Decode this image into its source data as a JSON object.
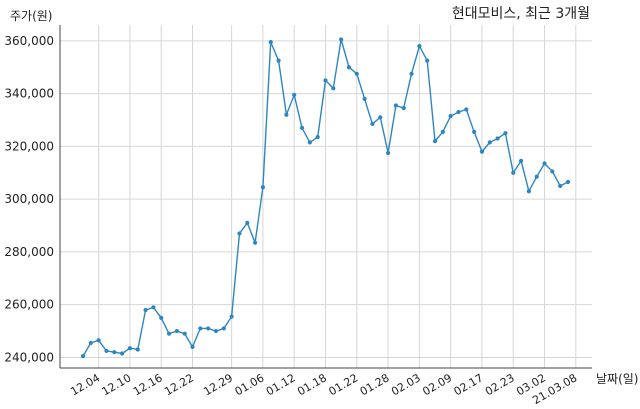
{
  "chart_data": {
    "type": "line",
    "title": "현대모비스, 최근 3개월",
    "ylabel": "주가(원)",
    "xlabel": "날짜(일)",
    "ylim": [
      236000,
      366000
    ],
    "yticks": [
      240000,
      260000,
      280000,
      300000,
      320000,
      340000,
      360000
    ],
    "ytick_labels": [
      "240,000",
      "260,000",
      "280,000",
      "300,000",
      "320,000",
      "340,000",
      "360,000"
    ],
    "xtick_labels": [
      "12.04",
      "12.10",
      "12.16",
      "12.22",
      "12.29",
      "01.06",
      "01.12",
      "01.18",
      "01.22",
      "01.28",
      "02.03",
      "02.09",
      "02.17",
      "02.23",
      "03.02",
      "21.03.08"
    ],
    "xtick_indices": [
      2,
      6,
      10,
      14,
      19,
      23,
      27,
      31,
      35,
      39,
      43,
      47,
      51,
      55,
      59,
      63
    ],
    "grid": true,
    "line_color": "#2e86c1",
    "values": [
      240500,
      245500,
      246500,
      242500,
      242000,
      241500,
      243500,
      243000,
      258000,
      259000,
      255000,
      249000,
      250000,
      249000,
      244000,
      251000,
      251000,
      250000,
      251000,
      255500,
      287000,
      291000,
      283500,
      304500,
      359500,
      352500,
      332000,
      339500,
      327000,
      321500,
      323500,
      345000,
      342000,
      360500,
      350000,
      347500,
      338000,
      328500,
      331000,
      317500,
      335500,
      334500,
      347500,
      358000,
      352500,
      322000,
      325500,
      331500,
      333000,
      334000,
      325500,
      318000,
      321500,
      323000,
      325000,
      310000,
      314500,
      303000,
      308500,
      313500,
      310500,
      305000,
      306500
    ]
  }
}
